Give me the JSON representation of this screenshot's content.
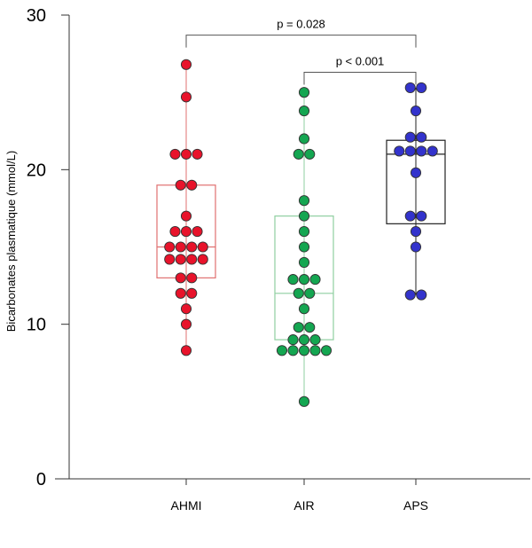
{
  "chart_data": {
    "type": "box-swarm",
    "ylabel": "Bicarbonates plasmatique (mmol/L)",
    "xlabel": "",
    "ylim": [
      0,
      30
    ],
    "yticks": [
      0,
      10,
      20,
      30
    ],
    "grid": false,
    "categories": [
      "AHMI",
      "AIR",
      "APS"
    ],
    "groups": [
      {
        "name": "AHMI",
        "color": "#e8132b",
        "box_color": "#e07070",
        "box": {
          "q1": 13,
          "median": 15,
          "q3": 19,
          "whisker_low": 8.3,
          "whisker_high": 26.8
        },
        "points": [
          26.8,
          24.7,
          21,
          21,
          21,
          19,
          19,
          17,
          16,
          16,
          16,
          15,
          15,
          15,
          15,
          14.2,
          14.2,
          14.2,
          14.2,
          13,
          13,
          12,
          12,
          11,
          10,
          8.3
        ]
      },
      {
        "name": "AIR",
        "color": "#14a651",
        "box_color": "#8fcfa0",
        "box": {
          "q1": 9,
          "median": 12,
          "q3": 17,
          "whisker_low": 5,
          "whisker_high": 25
        },
        "points": [
          25,
          23.8,
          22,
          21,
          21,
          18,
          17,
          16,
          15,
          14,
          12.9,
          12.9,
          12.9,
          12,
          12,
          11,
          9.8,
          9.8,
          9,
          9,
          9,
          8.3,
          8.3,
          8.3,
          8.3,
          8.3,
          5
        ]
      },
      {
        "name": "APS",
        "color": "#3333cc",
        "box_color": "#222222",
        "box": {
          "q1": 16.5,
          "median": 21,
          "q3": 21.9,
          "whisker_low": 11.9,
          "whisker_high": 25.3
        },
        "points": [
          25.3,
          25.3,
          23.8,
          22.1,
          22.1,
          21.2,
          21.2,
          21.2,
          21.2,
          19.8,
          17,
          17,
          16,
          15,
          11.9,
          11.9
        ]
      }
    ],
    "annotations": [
      {
        "label": "p = 0.028",
        "from": "AHMI",
        "to": "APS",
        "y": 28.7
      },
      {
        "label": "p < 0.001",
        "from": "AIR",
        "to": "APS",
        "y": 26.3
      }
    ]
  }
}
